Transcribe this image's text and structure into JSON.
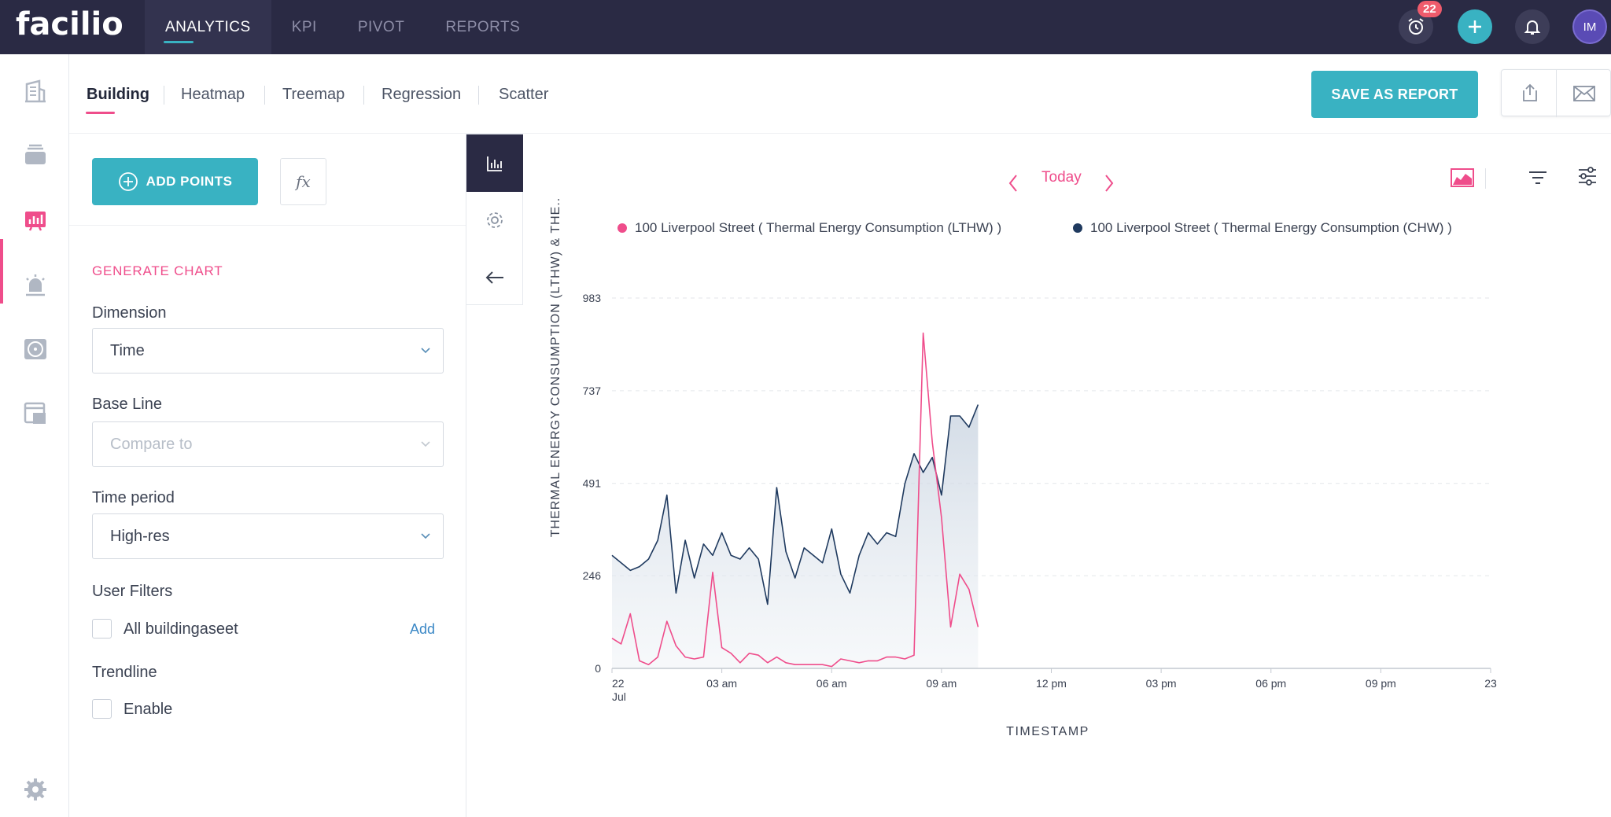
{
  "app": {
    "logo": "facilio",
    "nav": [
      "ANALYTICS",
      "KPI",
      "PIVOT",
      "REPORTS"
    ],
    "active_nav": "ANALYTICS",
    "alarm_count": "22",
    "avatar_initials": "IM"
  },
  "subtabs": [
    "Building",
    "Heatmap",
    "Treemap",
    "Regression",
    "Scatter"
  ],
  "save_report_label": "SAVE AS REPORT",
  "left_panel": {
    "add_points_label": "ADD POINTS",
    "fx_label": "fx",
    "generate_chart": "GENERATE CHART",
    "dimension_label": "Dimension",
    "dimension_value": "Time",
    "baseline_label": "Base Line",
    "baseline_placeholder": "Compare to",
    "time_period_label": "Time period",
    "time_period_value": "High-res",
    "user_filters_label": "User Filters",
    "filter_item": "All buildingaseet",
    "filter_add": "Add",
    "trendline_label": "Trendline",
    "trendline_enable": "Enable"
  },
  "chart_nav": {
    "today": "Today"
  },
  "colors": {
    "accent": "#39b2c2",
    "pink": "#ef4d8b",
    "navy": "#1f3a5f",
    "dark": "#2a2a44"
  },
  "chart_data": {
    "type": "line",
    "xlabel": "TIMESTAMP",
    "ylabel": "THERMAL ENERGY CONSUMPTION (LTHW) & THE..",
    "yticks": [
      0,
      246,
      491,
      737,
      983
    ],
    "ylim": [
      0,
      983
    ],
    "xlim": [
      0,
      24
    ],
    "xtick_labels": [
      "22",
      "03 am",
      "06 am",
      "09 am",
      "12 pm",
      "03 pm",
      "06 pm",
      "09 pm",
      "23"
    ],
    "xtick_sublabel": "Jul",
    "xtick_hours": [
      0,
      3,
      6,
      9,
      12,
      15,
      18,
      21,
      24
    ],
    "series": [
      {
        "name": "100 Liverpool Street ( Thermal Energy Consumption (LTHW) )",
        "color": "#ef4d8b",
        "x": [
          0,
          0.25,
          0.5,
          0.75,
          1,
          1.25,
          1.5,
          1.75,
          2,
          2.25,
          2.5,
          2.75,
          3,
          3.25,
          3.5,
          3.75,
          4,
          4.25,
          4.5,
          4.75,
          5,
          5.25,
          5.5,
          5.75,
          6,
          6.25,
          6.5,
          6.75,
          7,
          7.25,
          7.5,
          7.75,
          8,
          8.25,
          8.5,
          8.75,
          9,
          9.25,
          9.5,
          9.75,
          10
        ],
        "values": [
          80,
          65,
          145,
          20,
          10,
          30,
          125,
          60,
          30,
          25,
          30,
          255,
          55,
          40,
          15,
          40,
          35,
          15,
          30,
          15,
          10,
          10,
          10,
          10,
          5,
          25,
          20,
          15,
          20,
          20,
          30,
          30,
          25,
          35,
          890,
          600,
          400,
          110,
          250,
          210,
          110
        ]
      },
      {
        "name": "100 Liverpool Street ( Thermal Energy Consumption (CHW) )",
        "color": "#1f3a5f",
        "x": [
          0,
          0.25,
          0.5,
          0.75,
          1,
          1.25,
          1.5,
          1.75,
          2,
          2.25,
          2.5,
          2.75,
          3,
          3.25,
          3.5,
          3.75,
          4,
          4.25,
          4.5,
          4.75,
          5,
          5.25,
          5.5,
          5.75,
          6,
          6.25,
          6.5,
          6.75,
          7,
          7.25,
          7.5,
          7.75,
          8,
          8.25,
          8.5,
          8.75,
          9,
          9.25,
          9.5,
          9.75,
          10
        ],
        "values": [
          300,
          280,
          260,
          270,
          290,
          340,
          460,
          200,
          340,
          240,
          330,
          300,
          360,
          300,
          290,
          320,
          290,
          170,
          480,
          310,
          240,
          320,
          300,
          280,
          370,
          250,
          200,
          300,
          360,
          330,
          360,
          350,
          490,
          570,
          520,
          560,
          460,
          670,
          670,
          640,
          700
        ]
      }
    ]
  }
}
